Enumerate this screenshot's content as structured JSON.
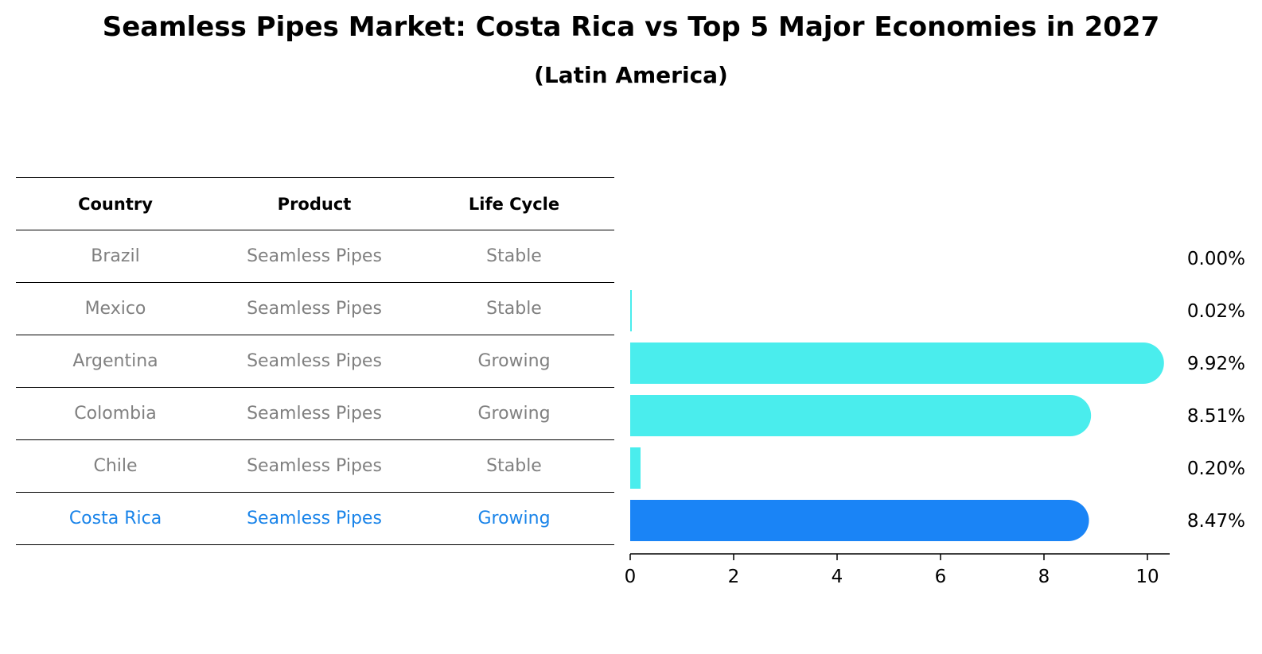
{
  "chart_data": {
    "type": "bar",
    "orientation": "horizontal",
    "title": "Seamless Pipes Market: Costa Rica vs Top 5 Major Economies in 2027",
    "subtitle": "(Latin America)",
    "table": {
      "columns": [
        "Country",
        "Product",
        "Life Cycle"
      ],
      "rows": [
        {
          "country": "Brazil",
          "product": "Seamless Pipes",
          "life_cycle": "Stable"
        },
        {
          "country": "Mexico",
          "product": "Seamless Pipes",
          "life_cycle": "Stable"
        },
        {
          "country": "Argentina",
          "product": "Seamless Pipes",
          "life_cycle": "Growing"
        },
        {
          "country": "Colombia",
          "product": "Seamless Pipes",
          "life_cycle": "Growing"
        },
        {
          "country": "Chile",
          "product": "Seamless Pipes",
          "life_cycle": "Stable"
        },
        {
          "country": "Costa Rica",
          "product": "Seamless Pipes",
          "life_cycle": "Growing"
        }
      ]
    },
    "categories": [
      "Brazil",
      "Mexico",
      "Argentina",
      "Colombia",
      "Chile",
      "Costa Rica"
    ],
    "values": [
      0.0,
      0.02,
      9.92,
      8.51,
      0.2,
      8.47
    ],
    "value_labels": [
      "0.00%",
      "0.02%",
      "9.92%",
      "8.51%",
      "0.20%",
      "8.47%"
    ],
    "highlight_category": "Costa Rica",
    "xlim": [
      0,
      10.4
    ],
    "xticks": [
      0,
      2,
      4,
      6,
      8,
      10
    ],
    "xtick_labels": [
      "0",
      "2",
      "4",
      "6",
      "8",
      "10"
    ],
    "colors": {
      "bar": "#4aeded",
      "highlight_bar": "#1a84f6",
      "highlight_text": "#1a84e9",
      "row_text": "#808080"
    }
  }
}
